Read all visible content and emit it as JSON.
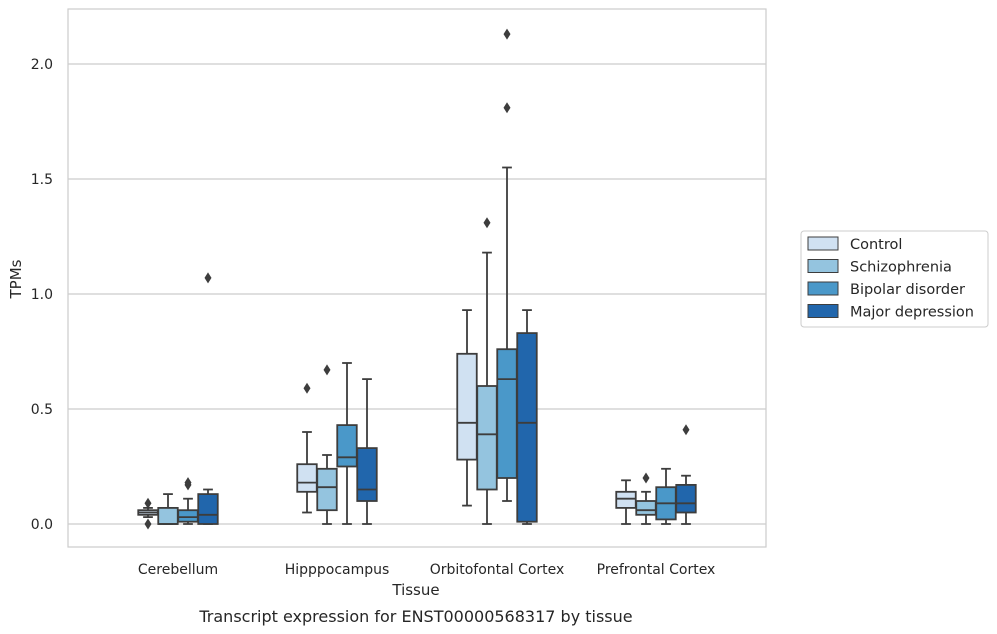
{
  "chart_data": {
    "type": "box",
    "title": "",
    "caption": "Transcript expression for ENST00000568317 by tissue",
    "xlabel": "Tissue",
    "ylabel": "TPMs",
    "ylim": [
      -0.1,
      2.25
    ],
    "yticks": [
      0.0,
      0.5,
      1.0,
      1.5,
      2.0
    ],
    "ytick_labels": [
      "0.0",
      "0.5",
      "1.0",
      "1.5",
      "2.0"
    ],
    "grid": "horizontal",
    "legend_position": "right",
    "categories": [
      "Cerebellum",
      "Hipppocampus",
      "Orbitofontal Cortex",
      "Prefrontal Cortex"
    ],
    "series": [
      {
        "name": "Control",
        "color": "#d0e1f2",
        "boxes": [
          {
            "whislo": 0.03,
            "q1": 0.04,
            "med": 0.05,
            "q3": 0.06,
            "whishi": 0.07,
            "fliers": [
              0.0,
              0.09
            ]
          },
          {
            "whislo": 0.05,
            "q1": 0.14,
            "med": 0.18,
            "q3": 0.26,
            "whishi": 0.4,
            "fliers": [
              0.59
            ]
          },
          {
            "whislo": 0.08,
            "q1": 0.28,
            "med": 0.44,
            "q3": 0.74,
            "whishi": 0.93,
            "fliers": []
          },
          {
            "whislo": 0.0,
            "q1": 0.07,
            "med": 0.11,
            "q3": 0.14,
            "whishi": 0.19,
            "fliers": []
          }
        ]
      },
      {
        "name": "Schizophrenia",
        "color": "#94c4df",
        "boxes": [
          {
            "whislo": 0.0,
            "q1": 0.0,
            "med": 0.0,
            "q3": 0.07,
            "whishi": 0.13,
            "fliers": []
          },
          {
            "whislo": 0.0,
            "q1": 0.06,
            "med": 0.16,
            "q3": 0.24,
            "whishi": 0.3,
            "fliers": [
              0.67
            ]
          },
          {
            "whislo": 0.0,
            "q1": 0.15,
            "med": 0.39,
            "q3": 0.6,
            "whishi": 1.18,
            "fliers": [
              1.31
            ]
          },
          {
            "whislo": 0.0,
            "q1": 0.04,
            "med": 0.06,
            "q3": 0.1,
            "whishi": 0.14,
            "fliers": [
              0.2
            ]
          }
        ]
      },
      {
        "name": "Bipolar disorder",
        "color": "#4a98c9",
        "boxes": [
          {
            "whislo": 0.0,
            "q1": 0.01,
            "med": 0.03,
            "q3": 0.06,
            "whishi": 0.11,
            "fliers": [
              0.17,
              0.18
            ]
          },
          {
            "whislo": 0.0,
            "q1": 0.25,
            "med": 0.29,
            "q3": 0.43,
            "whishi": 0.7,
            "fliers": []
          },
          {
            "whislo": 0.1,
            "q1": 0.2,
            "med": 0.63,
            "q3": 0.76,
            "whishi": 1.55,
            "fliers": [
              1.81,
              2.13
            ]
          },
          {
            "whislo": 0.0,
            "q1": 0.02,
            "med": 0.09,
            "q3": 0.16,
            "whishi": 0.24,
            "fliers": []
          }
        ]
      },
      {
        "name": "Major depression",
        "color": "#2166ac",
        "boxes": [
          {
            "whislo": 0.0,
            "q1": 0.0,
            "med": 0.04,
            "q3": 0.13,
            "whishi": 0.15,
            "fliers": [
              1.07
            ]
          },
          {
            "whislo": 0.0,
            "q1": 0.1,
            "med": 0.15,
            "q3": 0.33,
            "whishi": 0.63,
            "fliers": []
          },
          {
            "whislo": 0.0,
            "q1": 0.01,
            "med": 0.44,
            "q3": 0.83,
            "whishi": 0.93,
            "fliers": []
          },
          {
            "whislo": 0.0,
            "q1": 0.05,
            "med": 0.09,
            "q3": 0.17,
            "whishi": 0.21,
            "fliers": [
              0.41
            ]
          }
        ]
      }
    ]
  }
}
